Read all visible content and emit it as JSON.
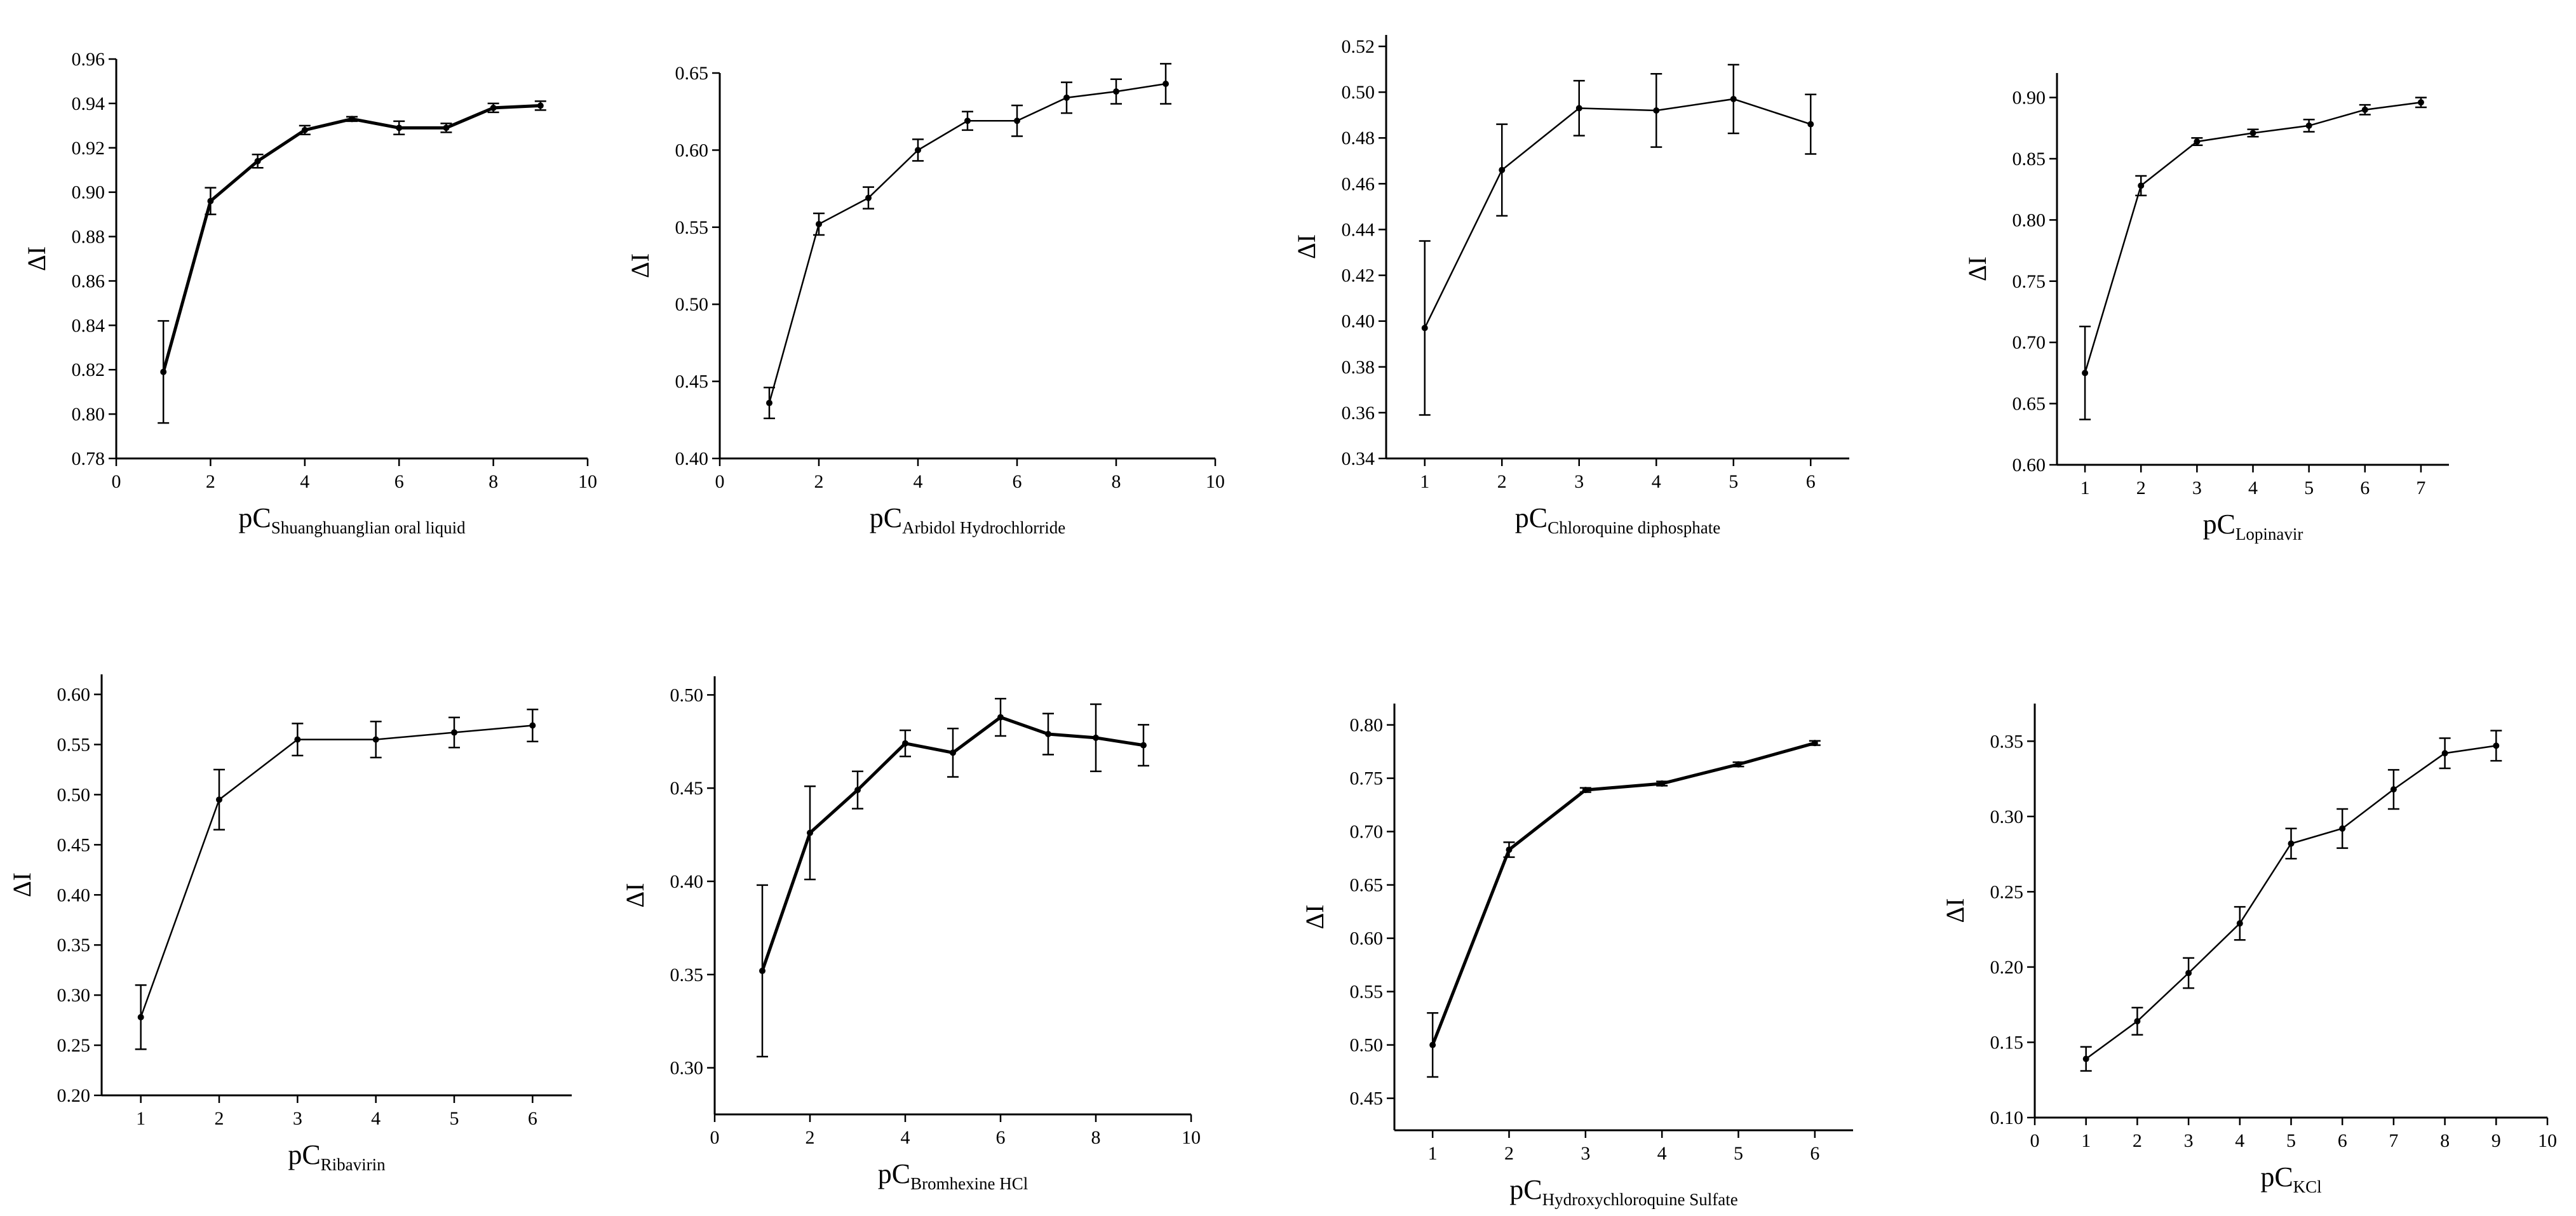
{
  "chart_data": [
    {
      "type": "line",
      "title": "",
      "ylabel": "ΔI",
      "xlabel_main": "pC",
      "xlabel_sub": "Shuanghuanglian oral liquid",
      "xlim": [
        0,
        10
      ],
      "ylim": [
        0.78,
        0.96
      ],
      "xticks": [
        0,
        2,
        4,
        6,
        8,
        10
      ],
      "yticks": [
        0.78,
        0.8,
        0.82,
        0.84,
        0.86,
        0.88,
        0.9,
        0.92,
        0.94,
        0.96
      ],
      "xtick_labels": [
        "0",
        "2",
        "4",
        "6",
        "8",
        "10"
      ],
      "ytick_labels": [
        "0.78",
        "0.80",
        "0.82",
        "0.84",
        "0.86",
        "0.88",
        "0.90",
        "0.92",
        "0.94",
        "0.96"
      ],
      "x": [
        1,
        2,
        3,
        4,
        5,
        6,
        7,
        8,
        9
      ],
      "y": [
        0.819,
        0.896,
        0.914,
        0.928,
        0.933,
        0.929,
        0.929,
        0.938,
        0.939
      ],
      "err": [
        0.023,
        0.006,
        0.003,
        0.002,
        0.001,
        0.003,
        0.002,
        0.002,
        0.002
      ]
    },
    {
      "type": "line",
      "title": "",
      "ylabel": "ΔI",
      "xlabel_main": "pC",
      "xlabel_sub": "Arbidol Hydrochlorride",
      "xlim": [
        0,
        10
      ],
      "ylim": [
        0.4,
        0.65
      ],
      "xticks": [
        0,
        2,
        4,
        6,
        8,
        10
      ],
      "yticks": [
        0.4,
        0.45,
        0.5,
        0.55,
        0.6,
        0.65
      ],
      "xtick_labels": [
        "0",
        "2",
        "4",
        "6",
        "8",
        "10"
      ],
      "ytick_labels": [
        "0.40",
        "0.45",
        "0.50",
        "0.55",
        "0.60",
        "0.65"
      ],
      "x": [
        1,
        2,
        3,
        4,
        5,
        6,
        7,
        8,
        9
      ],
      "y": [
        0.436,
        0.552,
        0.569,
        0.6,
        0.619,
        0.619,
        0.634,
        0.638,
        0.643
      ],
      "err": [
        0.01,
        0.007,
        0.007,
        0.007,
        0.006,
        0.01,
        0.01,
        0.008,
        0.013
      ]
    },
    {
      "type": "line",
      "title": "",
      "ylabel": "ΔI",
      "xlabel_main": "pC",
      "xlabel_sub": "Chloroquine diphosphate",
      "xlim": [
        0.5,
        6.5
      ],
      "ylim": [
        0.34,
        0.525
      ],
      "xticks": [
        1,
        2,
        3,
        4,
        5,
        6
      ],
      "yticks": [
        0.34,
        0.36,
        0.38,
        0.4,
        0.42,
        0.44,
        0.46,
        0.48,
        0.5,
        0.52
      ],
      "xtick_labels": [
        "1",
        "2",
        "3",
        "4",
        "5",
        "6"
      ],
      "ytick_labels": [
        "0.34",
        "0.36",
        "0.38",
        "0.40",
        "0.42",
        "0.44",
        "0.46",
        "0.48",
        "0.50",
        "0.52"
      ],
      "x": [
        1,
        2,
        3,
        4,
        5,
        6
      ],
      "y": [
        0.397,
        0.466,
        0.493,
        0.492,
        0.497,
        0.486
      ],
      "err": [
        0.038,
        0.02,
        0.012,
        0.016,
        0.015,
        0.013
      ]
    },
    {
      "type": "line",
      "title": "",
      "ylabel": "ΔI",
      "xlabel_main": "pC",
      "xlabel_sub": "Lopinavir",
      "xlim": [
        0.5,
        7.5
      ],
      "ylim": [
        0.6,
        0.92
      ],
      "xticks": [
        1,
        2,
        3,
        4,
        5,
        6,
        7
      ],
      "yticks": [
        0.6,
        0.65,
        0.7,
        0.75,
        0.8,
        0.85,
        0.9
      ],
      "xtick_labels": [
        "1",
        "2",
        "3",
        "4",
        "5",
        "6",
        "7"
      ],
      "ytick_labels": [
        "0.60",
        "0.65",
        "0.70",
        "0.75",
        "0.80",
        "0.85",
        "0.90"
      ],
      "x": [
        1,
        2,
        3,
        4,
        5,
        6,
        7
      ],
      "y": [
        0.675,
        0.828,
        0.864,
        0.871,
        0.877,
        0.89,
        0.896
      ],
      "err": [
        0.038,
        0.008,
        0.003,
        0.003,
        0.005,
        0.004,
        0.004
      ]
    },
    {
      "type": "line",
      "title": "",
      "ylabel": "ΔI",
      "xlabel_main": "pC",
      "xlabel_sub": "Ribavirin",
      "xlim": [
        0.5,
        6.5
      ],
      "ylim": [
        0.2,
        0.62
      ],
      "xticks": [
        1,
        2,
        3,
        4,
        5,
        6
      ],
      "yticks": [
        0.2,
        0.25,
        0.3,
        0.35,
        0.4,
        0.45,
        0.5,
        0.55,
        0.6
      ],
      "xtick_labels": [
        "1",
        "2",
        "3",
        "4",
        "5",
        "6"
      ],
      "ytick_labels": [
        "0.20",
        "0.25",
        "0.30",
        "0.35",
        "0.40",
        "0.45",
        "0.50",
        "0.55",
        "0.60"
      ],
      "x": [
        1,
        2,
        3,
        4,
        5,
        6
      ],
      "y": [
        0.278,
        0.495,
        0.555,
        0.555,
        0.562,
        0.569
      ],
      "err": [
        0.032,
        0.03,
        0.016,
        0.018,
        0.015,
        0.016
      ]
    },
    {
      "type": "line",
      "title": "",
      "ylabel": "ΔI",
      "xlabel_main": "pC",
      "xlabel_sub": "Bromhexine HCl",
      "xlim": [
        0,
        10
      ],
      "ylim": [
        0.275,
        0.51
      ],
      "xticks": [
        0,
        2,
        4,
        6,
        8,
        10
      ],
      "yticks": [
        0.3,
        0.35,
        0.4,
        0.45,
        0.5
      ],
      "xtick_labels": [
        "0",
        "2",
        "4",
        "6",
        "8",
        "10"
      ],
      "ytick_labels": [
        "0.30",
        "0.35",
        "0.40",
        "0.45",
        "0.50"
      ],
      "x": [
        1,
        2,
        3,
        4,
        5,
        6,
        7,
        8,
        9
      ],
      "y": [
        0.352,
        0.426,
        0.449,
        0.474,
        0.469,
        0.488,
        0.479,
        0.477,
        0.473
      ],
      "err": [
        0.046,
        0.025,
        0.01,
        0.007,
        0.013,
        0.01,
        0.011,
        0.018,
        0.011
      ]
    },
    {
      "type": "line",
      "title": "",
      "ylabel": "ΔI",
      "xlabel_main": "pC",
      "xlabel_sub": "Hydroxychloroquine Sulfate",
      "xlim": [
        0.5,
        6.5
      ],
      "ylim": [
        0.42,
        0.82
      ],
      "xticks": [
        1,
        2,
        3,
        4,
        5,
        6
      ],
      "yticks": [
        0.45,
        0.5,
        0.55,
        0.6,
        0.65,
        0.7,
        0.75,
        0.8
      ],
      "xtick_labels": [
        "1",
        "2",
        "3",
        "4",
        "5",
        "6"
      ],
      "ytick_labels": [
        "0.45",
        "0.50",
        "0.55",
        "0.60",
        "0.65",
        "0.70",
        "0.75",
        "0.80"
      ],
      "x": [
        1,
        2,
        3,
        4,
        5,
        6
      ],
      "y": [
        0.5,
        0.683,
        0.739,
        0.745,
        0.763,
        0.783
      ],
      "err": [
        0.03,
        0.007,
        0.002,
        0.002,
        0.002,
        0.002
      ]
    },
    {
      "type": "line",
      "title": "",
      "ylabel": "ΔI",
      "xlabel_main": "pC",
      "xlabel_sub": "KCl",
      "xlim": [
        0,
        10
      ],
      "ylim": [
        0.1,
        0.375
      ],
      "xticks": [
        0,
        1,
        2,
        3,
        4,
        5,
        6,
        7,
        8,
        9,
        10
      ],
      "yticks": [
        0.1,
        0.15,
        0.2,
        0.25,
        0.3,
        0.35
      ],
      "xtick_labels": [
        "0",
        "1",
        "2",
        "3",
        "4",
        "5",
        "6",
        "7",
        "8",
        "9",
        "10"
      ],
      "ytick_labels": [
        "0.10",
        "0.15",
        "0.20",
        "0.25",
        "0.30",
        "0.35"
      ],
      "x": [
        1,
        2,
        3,
        4,
        5,
        6,
        7,
        8,
        9
      ],
      "y": [
        0.139,
        0.164,
        0.196,
        0.229,
        0.282,
        0.292,
        0.318,
        0.342,
        0.347
      ],
      "err": [
        0.008,
        0.009,
        0.01,
        0.011,
        0.01,
        0.013,
        0.013,
        0.01,
        0.01
      ]
    }
  ]
}
